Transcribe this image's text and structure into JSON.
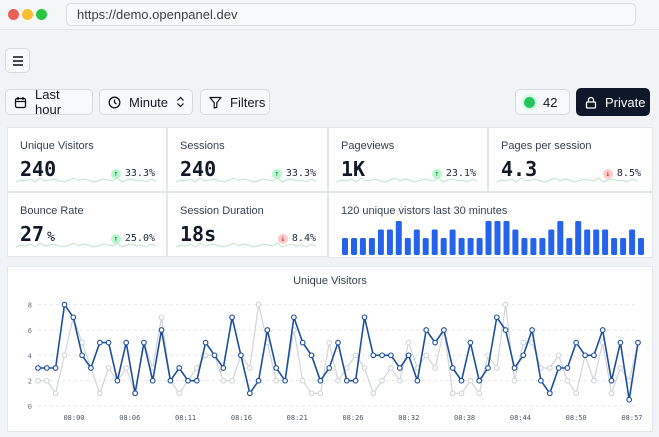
{
  "browser": {
    "url": "https://demo.openpanel.dev",
    "traffic_lights": [
      "#ee5f57",
      "#f6be30",
      "#27c840"
    ]
  },
  "toolbar": {
    "range_label": "Last hour",
    "interval_label": "Minute",
    "filters_label": "Filters",
    "live_count": "42",
    "private_label": "Private"
  },
  "metrics": [
    {
      "label": "Unique Visitors",
      "value": "240",
      "unit": "",
      "change": "33.3%",
      "direction": "up"
    },
    {
      "label": "Sessions",
      "value": "240",
      "unit": "",
      "change": "33.3%",
      "direction": "up"
    },
    {
      "label": "Pageviews",
      "value": "1K",
      "unit": "",
      "change": "23.1%",
      "direction": "up"
    },
    {
      "label": "Pages per session",
      "value": "4.3",
      "unit": "",
      "change": "8.5%",
      "direction": "down"
    },
    {
      "label": "Bounce Rate",
      "value": "27",
      "unit": "%",
      "change": "25.0%",
      "direction": "up"
    },
    {
      "label": "Session Duration",
      "value": "18s",
      "unit": "",
      "change": "8.4%",
      "direction": "down"
    }
  ],
  "realtime": {
    "title": "120 unique vistors last 30 minutes",
    "bars": [
      2,
      2,
      2,
      2,
      3,
      3,
      4,
      2,
      3,
      2,
      3,
      2,
      3,
      2,
      2,
      2,
      4,
      4,
      4,
      3,
      2,
      2,
      2,
      3,
      4,
      2,
      4,
      3,
      3,
      3,
      2,
      2,
      3,
      2
    ]
  },
  "chart_data": {
    "type": "line",
    "title": "Unique Visitors",
    "x_tick_labels": [
      "08:00",
      "08:06",
      "08:11",
      "08:16",
      "08:21",
      "08:26",
      "08:32",
      "08:38",
      "08:44",
      "08:50",
      "08:57"
    ],
    "y_ticks": [
      0,
      2,
      4,
      6,
      8
    ],
    "ylim": [
      0,
      8.6
    ],
    "series": [
      {
        "name": "current",
        "color": "#1e4f9c",
        "values": [
          3,
          3,
          3,
          8,
          7,
          4,
          3,
          5,
          5,
          2,
          5,
          1,
          5,
          2,
          6,
          2,
          3,
          2,
          2,
          5,
          4,
          3,
          7,
          4,
          1,
          2,
          6,
          3,
          2,
          7,
          5,
          4,
          2,
          3,
          5,
          2,
          2,
          7,
          4,
          4,
          4,
          3,
          4,
          2,
          6,
          5,
          6,
          3,
          2,
          5,
          2,
          3,
          7,
          6,
          3,
          4,
          6,
          2,
          1,
          3,
          3,
          5,
          4,
          4,
          6,
          2,
          5,
          0.5,
          5
        ]
      },
      {
        "name": "previous",
        "color": "#d1d5db",
        "values": [
          2,
          2,
          1,
          4,
          7,
          5,
          3,
          1,
          3,
          2,
          3,
          1,
          5,
          3,
          7,
          2,
          1,
          2,
          3,
          4,
          4,
          2,
          2,
          4,
          3,
          8,
          5,
          2,
          2,
          6,
          2,
          1,
          1,
          5,
          2,
          3,
          4,
          3,
          1,
          2,
          3,
          2,
          5,
          3,
          4,
          3,
          6,
          1,
          1,
          2,
          1,
          4,
          3,
          8,
          2,
          5,
          5,
          3,
          3,
          4,
          2,
          1,
          4,
          2,
          5,
          1,
          3,
          2,
          5
        ]
      }
    ]
  }
}
